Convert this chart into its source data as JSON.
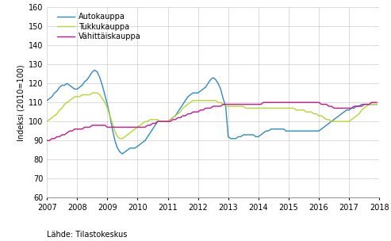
{
  "title": "",
  "ylabel": "Indeksi (2010=100)",
  "xlabel": "",
  "source_text": "Lähde: Tilastokeskus",
  "ylim": [
    60,
    160
  ],
  "yticks": [
    60,
    70,
    80,
    90,
    100,
    110,
    120,
    130,
    140,
    150,
    160
  ],
  "xlim_start": 2007.0,
  "xlim_end": 2018.0,
  "xtick_years": [
    2007,
    2008,
    2009,
    2010,
    2011,
    2012,
    2013,
    2014,
    2015,
    2016,
    2017,
    2018
  ],
  "colors": {
    "autokauppa": "#2e8bc0",
    "tukkukauppa": "#b8d432",
    "vahittaiskauppa": "#c8148c"
  },
  "legend_labels": [
    "Autokauppa",
    "Tukkukauppa",
    "Vähittäiskauppa"
  ],
  "background_color": "#ffffff",
  "grid_color": "#cccccc",
  "autokauppa": [
    111,
    112,
    113,
    115,
    116,
    118,
    119,
    119,
    120,
    119,
    118,
    117,
    117,
    118,
    119,
    121,
    122,
    124,
    126,
    127,
    126,
    123,
    119,
    114,
    109,
    103,
    96,
    90,
    86,
    84,
    83,
    84,
    85,
    86,
    86,
    86,
    87,
    88,
    89,
    90,
    92,
    94,
    96,
    98,
    100,
    100,
    100,
    100,
    100,
    101,
    102,
    103,
    105,
    107,
    109,
    111,
    113,
    114,
    115,
    115,
    115,
    116,
    117,
    118,
    120,
    122,
    123,
    122,
    120,
    117,
    112,
    108,
    92,
    91,
    91,
    91,
    92,
    92,
    93,
    93,
    93,
    93,
    93,
    92,
    92,
    93,
    94,
    95,
    95,
    96,
    96,
    96,
    96,
    96,
    96,
    95,
    95,
    95,
    95,
    95,
    95,
    95,
    95,
    95,
    95,
    95,
    95,
    95,
    95,
    96,
    97,
    98,
    99,
    100,
    101,
    102,
    103,
    104,
    105,
    106,
    106,
    107,
    107,
    108,
    108,
    109,
    109,
    109,
    109,
    109,
    109,
    109
  ],
  "tukkukauppa": [
    100,
    101,
    102,
    103,
    104,
    106,
    107,
    109,
    110,
    111,
    112,
    113,
    113,
    113,
    114,
    114,
    114,
    114,
    115,
    115,
    115,
    114,
    112,
    110,
    107,
    103,
    99,
    95,
    92,
    91,
    91,
    92,
    93,
    94,
    95,
    96,
    97,
    98,
    99,
    100,
    100,
    101,
    101,
    101,
    101,
    100,
    100,
    100,
    100,
    101,
    102,
    103,
    104,
    105,
    107,
    108,
    109,
    110,
    111,
    111,
    111,
    111,
    111,
    111,
    111,
    111,
    111,
    111,
    110,
    110,
    109,
    108,
    108,
    108,
    108,
    108,
    108,
    108,
    108,
    107,
    107,
    107,
    107,
    107,
    107,
    107,
    107,
    107,
    107,
    107,
    107,
    107,
    107,
    107,
    107,
    107,
    107,
    107,
    107,
    106,
    106,
    106,
    106,
    105,
    105,
    105,
    104,
    104,
    103,
    103,
    102,
    101,
    101,
    100,
    100,
    100,
    100,
    100,
    100,
    100,
    100,
    101,
    102,
    103,
    104,
    106,
    107,
    108,
    109,
    109,
    109,
    109
  ],
  "vahittaiskauppa": [
    90,
    90,
    91,
    91,
    92,
    92,
    93,
    93,
    94,
    95,
    95,
    96,
    96,
    96,
    96,
    97,
    97,
    97,
    98,
    98,
    98,
    98,
    98,
    98,
    97,
    97,
    97,
    97,
    97,
    97,
    97,
    97,
    97,
    97,
    97,
    97,
    97,
    97,
    97,
    97,
    98,
    98,
    99,
    99,
    100,
    100,
    100,
    100,
    100,
    100,
    101,
    101,
    102,
    102,
    103,
    103,
    104,
    104,
    105,
    105,
    105,
    106,
    106,
    107,
    107,
    107,
    108,
    108,
    108,
    108,
    109,
    109,
    109,
    109,
    109,
    109,
    109,
    109,
    109,
    109,
    109,
    109,
    109,
    109,
    109,
    109,
    110,
    110,
    110,
    110,
    110,
    110,
    110,
    110,
    110,
    110,
    110,
    110,
    110,
    110,
    110,
    110,
    110,
    110,
    110,
    110,
    110,
    110,
    110,
    109,
    109,
    109,
    108,
    108,
    107,
    107,
    107,
    107,
    107,
    107,
    107,
    107,
    108,
    108,
    108,
    108,
    109,
    109,
    109,
    110,
    110,
    110
  ]
}
